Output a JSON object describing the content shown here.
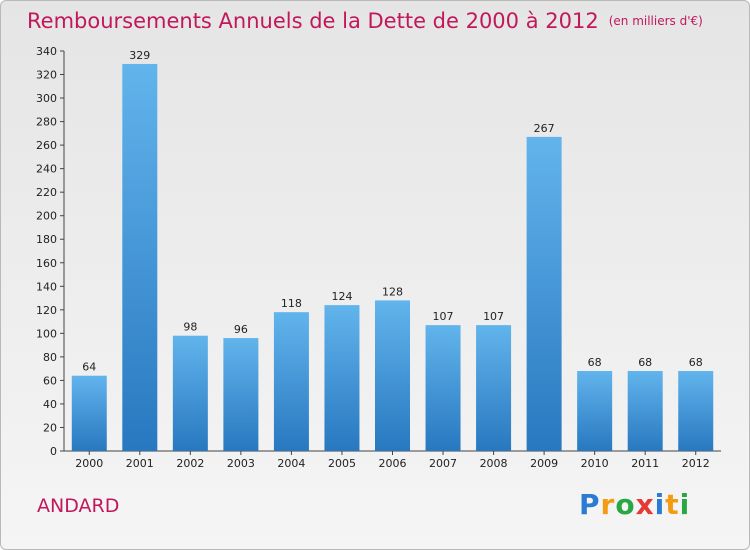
{
  "title": "Remboursements Annuels de la Dette de 2000 à 2012",
  "subtitle": "(en milliers d'€)",
  "town": "ANDARD",
  "logo": {
    "letters": [
      "P",
      "r",
      "o",
      "x",
      "i",
      "t",
      "i"
    ],
    "colors": [
      "#2b7bd3",
      "#f39c12",
      "#27a844",
      "#e53935",
      "#2b7bd3",
      "#f39c12",
      "#27a844"
    ]
  },
  "colors": {
    "bar_top": "#62b4ec",
    "bar_bottom": "#2878c0",
    "title": "#c2185b"
  },
  "chart_data": {
    "type": "bar",
    "title": "Remboursements Annuels de la Dette de 2000 à 2012",
    "ylabel": "(en milliers d'€)",
    "categories": [
      "2000",
      "2001",
      "2002",
      "2003",
      "2004",
      "2005",
      "2006",
      "2007",
      "2008",
      "2009",
      "2010",
      "2011",
      "2012"
    ],
    "values": [
      64,
      329,
      98,
      96,
      118,
      124,
      128,
      107,
      107,
      267,
      68,
      68,
      68
    ],
    "ylim": [
      0,
      340
    ],
    "yticks": [
      0,
      20,
      40,
      60,
      80,
      100,
      120,
      140,
      160,
      180,
      200,
      220,
      240,
      260,
      280,
      300,
      320,
      340
    ],
    "grid": false,
    "legend": "none"
  }
}
